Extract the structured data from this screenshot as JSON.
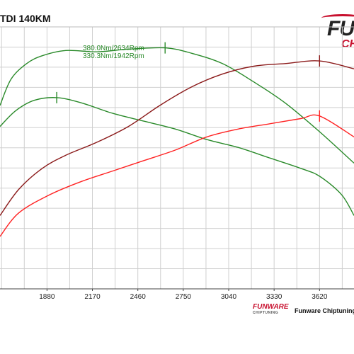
{
  "title": "TDI 140KM",
  "brand": {
    "logo_text": "FU",
    "logo_sub": "CH"
  },
  "footer": {
    "logo_text": "FUNWARE",
    "logo_sub": "CHIPTUNING",
    "text": "Funware Chiptuning"
  },
  "annotations": [
    "380.0Nm/2634Rpm",
    "330.3Nm/1942Rpm"
  ],
  "colors": {
    "stock_torque": "#2a8a2a",
    "tuned_torque": "#2a8a2a",
    "stock_power": "#ff2222",
    "tuned_power": "#8b1a1a",
    "grid": "#cfcfcf"
  },
  "chart_data": {
    "type": "line",
    "title": "TDI 140KM",
    "xlabel": "",
    "ylabel": "",
    "x_ticks": [
      1880,
      2170,
      2460,
      2750,
      3040,
      3330,
      3620
    ],
    "xlim": [
      1580,
      3840
    ],
    "ylim": [
      0,
      100
    ],
    "grid": true,
    "series": [
      {
        "name": "",
        "color": "#2a8a2a",
        "x": [
          1580,
          1650,
          1750,
          1850,
          2000,
          2200,
          2400,
          2634,
          2800,
          3000,
          3200,
          3400,
          3620,
          3840
        ],
        "y": [
          70,
          80,
          86,
          89,
          91,
          90.5,
          91.5,
          92,
          90,
          86,
          79,
          71,
          60,
          48
        ]
      },
      {
        "name": "",
        "color": "#2a8a2a",
        "x": [
          1580,
          1680,
          1800,
          1942,
          2100,
          2300,
          2500,
          2700,
          2900,
          3100,
          3300,
          3500,
          3620,
          3760,
          3840
        ],
        "y": [
          62,
          68,
          72,
          73,
          71,
          67,
          64,
          61,
          57,
          54,
          50,
          46,
          43,
          36,
          28
        ]
      },
      {
        "name": "",
        "color": "#8b1a1a",
        "x": [
          1580,
          1700,
          1850,
          2000,
          2200,
          2400,
          2600,
          2800,
          3000,
          3200,
          3400,
          3620,
          3840
        ],
        "y": [
          28,
          38,
          46,
          51,
          56,
          62,
          70,
          77,
          82,
          85,
          86,
          87,
          84
        ]
      },
      {
        "name": "",
        "color": "#ff2222",
        "x": [
          1580,
          1700,
          1900,
          2100,
          2300,
          2500,
          2700,
          2900,
          3100,
          3300,
          3500,
          3620,
          3840
        ],
        "y": [
          20,
          29,
          36,
          41,
          45,
          49,
          53,
          58,
          61,
          63,
          65,
          66,
          58
        ]
      }
    ],
    "markers": [
      {
        "series": 0,
        "x": 2634,
        "y": 92
      },
      {
        "series": 1,
        "x": 1942,
        "y": 73
      },
      {
        "series": 2,
        "x": 3620,
        "y": 87
      },
      {
        "series": 3,
        "x": 3620,
        "y": 66
      }
    ]
  }
}
